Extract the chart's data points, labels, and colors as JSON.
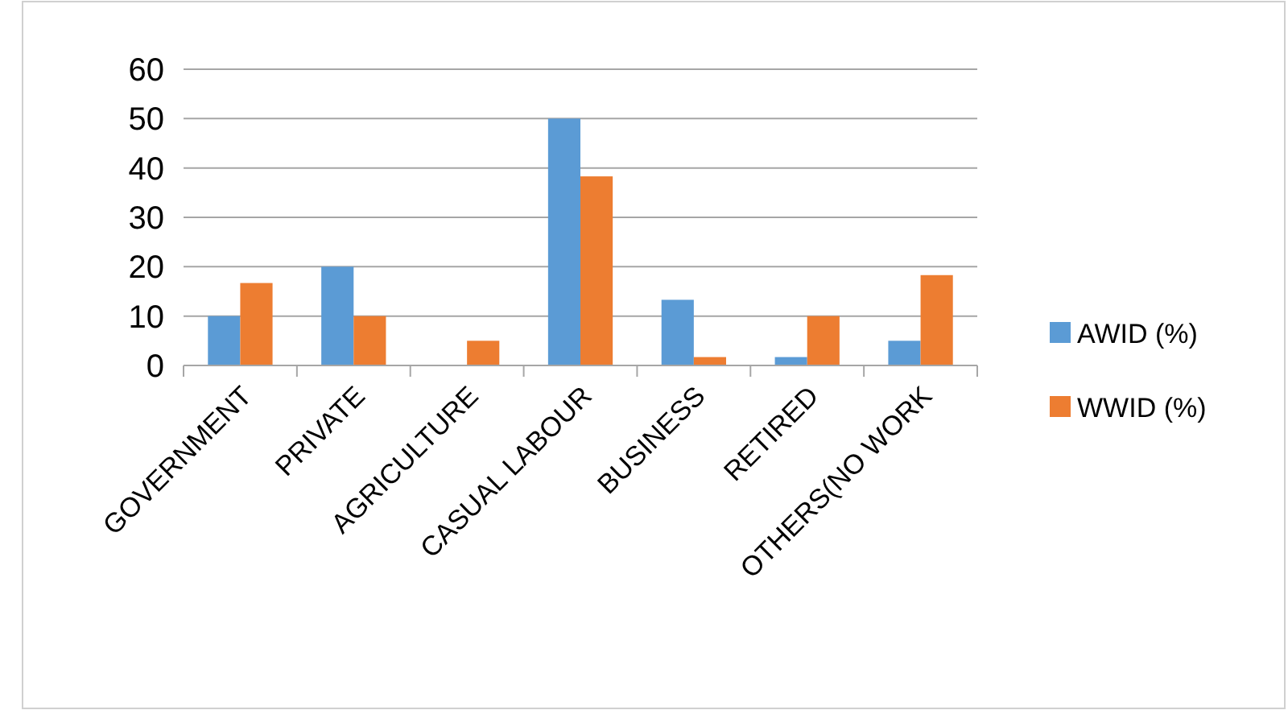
{
  "chart_data": {
    "type": "bar",
    "categories": [
      "GOVERNMENT",
      "PRIVATE",
      "AGRICULTURE",
      "CASUAL LABOUR",
      "BUSINESS",
      "RETIRED",
      "OTHERS(NO WORK"
    ],
    "series": [
      {
        "name": "AWID (%)",
        "color": "#5b9bd5",
        "values": [
          10,
          20,
          0,
          50,
          13.3,
          1.7,
          5
        ]
      },
      {
        "name": "WWID (%)",
        "color": "#ed7d31",
        "values": [
          16.7,
          10,
          5,
          38.3,
          1.7,
          10,
          18.3
        ]
      }
    ],
    "ylim": [
      0,
      60
    ],
    "yticks": [
      0,
      10,
      20,
      30,
      40,
      50,
      60
    ],
    "grid": "y",
    "legend": "right"
  }
}
